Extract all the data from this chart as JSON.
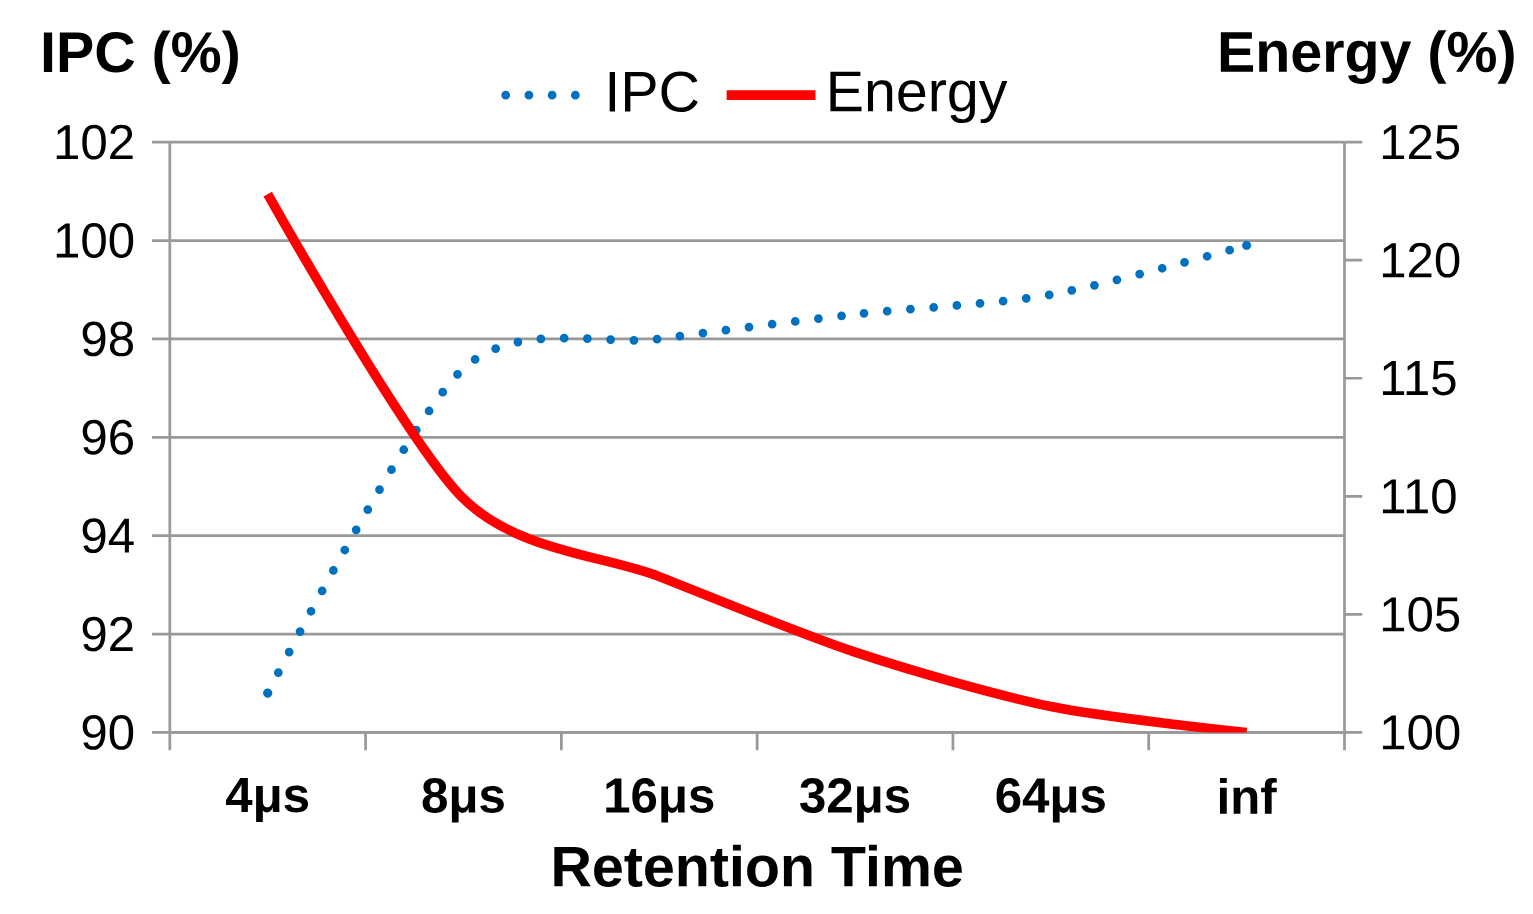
{
  "chart_data": {
    "type": "line",
    "xlabel": "Retention Time",
    "ylabel": "IPC (%)",
    "y2label": "Energy (%)",
    "categories": [
      "4μs",
      "8μs",
      "16μs",
      "32μs",
      "64μs",
      "inf"
    ],
    "ylim": [
      90,
      102
    ],
    "yticks": [
      90,
      92,
      94,
      96,
      98,
      100,
      102
    ],
    "y2lim": [
      100,
      125
    ],
    "y2ticks": [
      100,
      105,
      110,
      115,
      120,
      125
    ],
    "grid": "y",
    "legend": "top",
    "series": [
      {
        "name": "IPC",
        "color": "#0070c0",
        "line_style": "dotted",
        "values": [
          90.8,
          97.4,
          98.0,
          98.5,
          98.9,
          99.9
        ]
      },
      {
        "name": "Energy",
        "color": "#ff0000",
        "line_style": "solid",
        "axis": "y2",
        "values": [
          122.8,
          109.9,
          106.6,
          103.4,
          101.1,
          100.0
        ]
      }
    ]
  }
}
